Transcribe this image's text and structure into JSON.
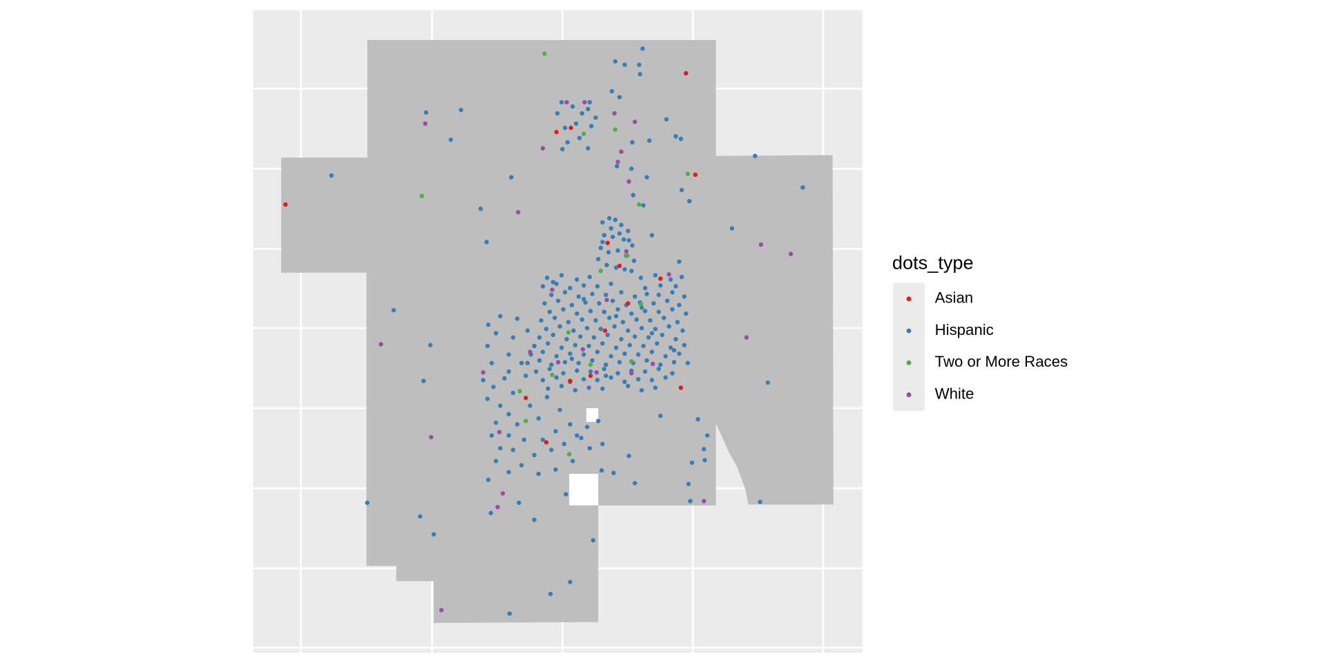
{
  "chart_data": {
    "type": "scatter",
    "legend_title": "dots_type",
    "legend": "right",
    "xlim": [
      0,
      715
    ],
    "ylim": [
      0,
      754
    ],
    "series": [
      {
        "name": "Asian",
        "color": "#E41A1C",
        "x": [
          508,
          519,
          38,
          356,
          373,
          416,
          430,
          478,
          440,
          413,
          396,
          372,
          502,
          320,
          344
        ],
        "values": [
          680,
          561,
          526,
          611,
          616,
          481,
          454,
          439,
          410,
          378,
          325,
          319,
          311,
          299,
          247
        ]
      },
      {
        "name": "Hispanic",
        "color": "#377EB8",
        "x": [
          410,
          418,
          425,
          432,
          440,
          412,
          422,
          435,
          445,
          408,
          417,
          428,
          438,
          447,
          405,
          415,
          426,
          436,
          444,
          420,
          430,
          410,
          441,
          345,
          362,
          380,
          395,
          455,
          472,
          490,
          503,
          340,
          356,
          372,
          388,
          404,
          420,
          460,
          478,
          496,
          350,
          366,
          382,
          398,
          414,
          432,
          448,
          462,
          476,
          492,
          506,
          342,
          358,
          374,
          390,
          406,
          422,
          438,
          454,
          470,
          486,
          500,
          348,
          364,
          380,
          396,
          412,
          428,
          444,
          460,
          476,
          492,
          508,
          338,
          354,
          370,
          386,
          402,
          418,
          434,
          450,
          466,
          482,
          498,
          344,
          360,
          376,
          392,
          408,
          424,
          440,
          456,
          472,
          488,
          504,
          336,
          352,
          368,
          384,
          400,
          416,
          432,
          448,
          464,
          480,
          496,
          330,
          346,
          362,
          378,
          394,
          410,
          426,
          442,
          458,
          474,
          490,
          506,
          326,
          340,
          356,
          372,
          388,
          404,
          420,
          436,
          452,
          468,
          484,
          500,
          322,
          336,
          350,
          366,
          382,
          398,
          414,
          430,
          446,
          462,
          478,
          494,
          510,
          332,
          348,
          364,
          380,
          396,
          412,
          428,
          444,
          460,
          476,
          492,
          340,
          356,
          372,
          388,
          404,
          420,
          436,
          452,
          468,
          484,
          346,
          362,
          378,
          394,
          410,
          440,
          456,
          472,
          352,
          388,
          426,
          468,
          494,
          374,
          414,
          456,
          270,
          282,
          295,
          305,
          275,
          290,
          300,
          285,
          310,
          325,
          335,
          345,
          360,
          372,
          355,
          340,
          318,
          300,
          280,
          290,
          305,
          330,
          350,
          365,
          380,
          392,
          405,
          395,
          375,
          355,
          335,
          315,
          300,
          285,
          410,
          320,
          300,
          280,
          275,
          285,
          300,
          315,
          330,
          305,
          290,
          276,
          310,
          322,
          457,
          425,
          436,
          453,
          454,
          421,
          203,
          244,
          232,
          92,
          303,
          267,
          274,
          165,
          208,
          200,
          134,
          196,
          212,
          399,
          349,
          372,
          301,
          589,
          645,
          562,
          604,
          595,
          513,
          522,
          533,
          529,
          515,
          530,
          511,
          502,
          496,
          465,
          485,
          503,
          512,
          458,
          446,
          468,
          500,
          478,
          448,
          441,
          423,
          409,
          385,
          367,
          330,
          276,
          279,
          312,
          362,
          357,
          375,
          386,
          393,
          397,
          369,
          393,
          383,
          363,
          402,
          427,
          444,
          462,
          445,
          430,
          395,
          366,
          379
        ],
        "values": [
          505,
          510,
          508,
          502,
          495,
          490,
          488,
          485,
          478,
          475,
          470,
          472,
          466,
          460,
          462,
          455,
          452,
          450,
          448,
          498,
          492,
          482,
          484,
          440,
          443,
          438,
          441,
          440,
          443,
          438,
          441,
          430,
          433,
          428,
          431,
          430,
          433,
          428,
          431,
          430,
          420,
          423,
          418,
          421,
          420,
          423,
          418,
          421,
          420,
          423,
          418,
          410,
          413,
          408,
          411,
          410,
          413,
          408,
          411,
          410,
          413,
          408,
          400,
          403,
          398,
          401,
          400,
          403,
          398,
          401,
          400,
          403,
          398,
          390,
          393,
          388,
          391,
          390,
          393,
          388,
          391,
          390,
          393,
          388,
          380,
          383,
          378,
          381,
          380,
          383,
          378,
          381,
          380,
          383,
          378,
          370,
          373,
          368,
          371,
          370,
          373,
          368,
          371,
          370,
          373,
          368,
          360,
          363,
          358,
          361,
          360,
          363,
          358,
          361,
          360,
          363,
          358,
          361,
          350,
          353,
          348,
          351,
          350,
          353,
          348,
          351,
          350,
          353,
          348,
          351,
          340,
          343,
          338,
          341,
          340,
          343,
          338,
          341,
          340,
          343,
          338,
          341,
          340,
          330,
          333,
          328,
          331,
          330,
          333,
          328,
          331,
          330,
          333,
          328,
          320,
          323,
          318,
          321,
          320,
          323,
          318,
          321,
          320,
          323,
          310,
          313,
          308,
          311,
          310,
          313,
          308,
          311,
          435,
          415,
          395,
          375,
          355,
          345,
          325,
          405,
          320,
          312,
          322,
          305,
          298,
          290,
          280,
          270,
          268,
          290,
          275,
          300,
          285,
          268,
          260,
          250,
          250,
          255,
          255,
          240,
          238,
          232,
          238,
          245,
          255,
          265,
          272,
          240,
          225,
          215,
          210,
          220,
          212,
          225,
          245,
          325,
          330,
          340,
          360,
          375,
          350,
          340,
          360,
          370,
          395,
          385,
          392,
          378,
          709,
          694,
          690,
          690,
          679,
          659,
          634,
          637,
          602,
          560,
          558,
          521,
          482,
          402,
          361,
          319,
          176,
          160,
          139,
          132,
          69,
          83,
          46,
          583,
          546,
          498,
          317,
          177,
          178,
          274,
          255,
          239,
          223,
          226,
          198,
          603,
          606,
          601,
          626,
          543,
          530,
          525,
          537,
          490,
          459,
          278,
          199,
          231,
          211,
          214,
          252,
          186,
          156,
          203,
          164,
          176,
          646,
          633,
          641,
          633,
          638,
          618,
          599,
          592,
          604,
          591,
          628,
          571,
          568,
          558,
          599,
          652,
          646,
          616,
          621
        ]
      },
      {
        "name": "Two or More Races",
        "color": "#4DAF4A",
        "x": [
          342,
          198,
          425,
          388,
          510,
          453,
          439,
          408,
          455,
          370,
          351,
          396,
          444,
          313,
          320,
          371
        ],
        "values": [
          703,
          536,
          614,
          609,
          562,
          526,
          466,
          448,
          409,
          376,
          326,
          338,
          342,
          307,
          272,
          233
        ]
      },
      {
        "name": "White",
        "color": "#984EA3",
        "x": [
          202,
          340,
          311,
          368,
          389,
          424,
          448,
          432,
          428,
          441,
          596,
          631,
          579,
          150,
          209,
          289,
          293,
          287,
          221,
          529,
          351,
          438,
          415,
          387,
          325,
          270,
          403,
          469,
          358,
          444,
          488
        ],
        "values": [
          621,
          592,
          517,
          646,
          646,
          633,
          623,
          588,
          576,
          553,
          479,
          468,
          370,
          362,
          253,
          259,
          187,
          171,
          50,
          178,
          426,
          471,
          414,
          356,
          353,
          329,
          329,
          339,
          341,
          328,
          444
        ]
      }
    ]
  }
}
